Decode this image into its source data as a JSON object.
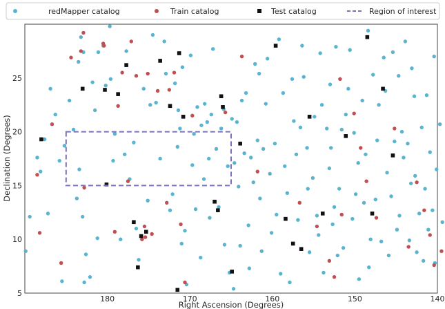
{
  "chart_data": {
    "type": "scatter",
    "xlabel": "Right Ascension (Degrees)",
    "ylabel": "Declination (Degrees)",
    "xlim": [
      190,
      140
    ],
    "ylim": [
      5,
      30
    ],
    "x_inverted": true,
    "xticks": [
      180,
      170,
      160,
      150,
      140
    ],
    "yticks": [
      5,
      10,
      15,
      20,
      25
    ],
    "grid": false,
    "legend_position": "top, horizontal",
    "colors": {
      "redmapper": "#5ab4cf",
      "train": "#c04f52",
      "test": "#111111",
      "region": "#7a72b8",
      "frame": "#444444"
    },
    "legend": [
      {
        "key": "redmapper",
        "label": "redMapper catalog",
        "marker": "circle"
      },
      {
        "key": "train",
        "label": "Train catalog",
        "marker": "circle"
      },
      {
        "key": "test",
        "label": "Test catalog",
        "marker": "square"
      },
      {
        "key": "region",
        "label": "Region of interest",
        "marker": "dashed-line"
      }
    ],
    "region": {
      "ra": [
        165,
        185
      ],
      "dec": [
        15,
        20
      ]
    },
    "series": {
      "redmapper": [
        [
          189.9,
          8.9
        ],
        [
          188.5,
          17.6
        ],
        [
          188.1,
          16.3
        ],
        [
          187.6,
          19.3
        ],
        [
          187.2,
          12.4
        ],
        [
          185.5,
          6.1
        ],
        [
          185.8,
          17.3
        ],
        [
          185.2,
          18.7
        ],
        [
          184.6,
          22.9
        ],
        [
          183.2,
          28.8
        ],
        [
          183.5,
          26.5
        ],
        [
          183.7,
          13.8
        ],
        [
          182.9,
          27.4
        ],
        [
          183.4,
          16.5
        ],
        [
          182.8,
          6.0
        ],
        [
          182.1,
          6.5
        ],
        [
          182.6,
          8.6
        ],
        [
          183.0,
          12.1
        ],
        [
          181.8,
          24.6
        ],
        [
          181.1,
          27.4
        ],
        [
          181.2,
          10.1
        ],
        [
          180.5,
          28.0
        ],
        [
          180.2,
          24.3
        ],
        [
          179.7,
          29.8
        ],
        [
          179.6,
          24.9
        ],
        [
          179.1,
          19.8
        ],
        [
          178.4,
          10.0
        ],
        [
          177.7,
          27.5
        ],
        [
          177.9,
          17.9
        ],
        [
          176.5,
          11.0
        ],
        [
          176.2,
          8.1
        ],
        [
          175.6,
          24.0
        ],
        [
          174.8,
          22.5
        ],
        [
          174.5,
          29.0
        ],
        [
          174.1,
          22.7
        ],
        [
          173.1,
          28.4
        ],
        [
          172.9,
          25.4
        ],
        [
          172.4,
          12.7
        ],
        [
          171.8,
          24.5
        ],
        [
          171.4,
          22.0
        ],
        [
          171.5,
          18.6
        ],
        [
          171.2,
          20.3
        ],
        [
          171.0,
          9.6
        ],
        [
          170.6,
          10.8
        ],
        [
          170.4,
          5.8
        ],
        [
          169.9,
          27.1
        ],
        [
          169.7,
          16.9
        ],
        [
          169.5,
          19.8
        ],
        [
          169.1,
          22.3
        ],
        [
          168.6,
          20.6
        ],
        [
          168.2,
          22.6
        ],
        [
          168.3,
          15.6
        ],
        [
          167.9,
          20.9
        ],
        [
          167.7,
          17.5
        ],
        [
          167.4,
          21.6
        ],
        [
          167.6,
          12.0
        ],
        [
          166.2,
          20.3
        ],
        [
          166.5,
          13.0
        ],
        [
          165.9,
          22.1
        ],
        [
          165.4,
          16.8
        ],
        [
          165.8,
          9.5
        ],
        [
          164.9,
          21.2
        ],
        [
          164.3,
          20.9
        ],
        [
          164.6,
          17.1
        ],
        [
          164.7,
          5.4
        ],
        [
          163.7,
          22.9
        ],
        [
          163.2,
          23.6
        ],
        [
          163.4,
          18.0
        ],
        [
          162.6,
          17.6
        ],
        [
          162.9,
          11.3
        ],
        [
          162.8,
          7.3
        ],
        [
          162.1,
          26.3
        ],
        [
          161.6,
          25.4
        ],
        [
          161.8,
          19.2
        ],
        [
          161.5,
          13.8
        ],
        [
          161.1,
          18.4
        ],
        [
          160.6,
          26.8
        ],
        [
          160.8,
          22.6
        ],
        [
          160.3,
          16.1
        ],
        [
          159.7,
          18.9
        ],
        [
          159.5,
          12.3
        ],
        [
          159.0,
          6.8
        ],
        [
          158.7,
          23.6
        ],
        [
          158.2,
          14.3
        ],
        [
          157.6,
          24.9
        ],
        [
          157.4,
          21.0
        ],
        [
          156.6,
          20.4
        ],
        [
          156.2,
          25.1
        ],
        [
          155.8,
          18.5
        ],
        [
          155.7,
          14.7
        ],
        [
          155.5,
          8.8
        ],
        [
          154.9,
          21.4
        ],
        [
          154.6,
          12.2
        ],
        [
          154.4,
          10.4
        ],
        [
          154.0,
          22.5
        ],
        [
          153.4,
          20.3
        ],
        [
          153.1,
          16.6
        ],
        [
          152.7,
          11.4
        ],
        [
          152.5,
          13.0
        ],
        [
          152.1,
          8.5
        ],
        [
          151.6,
          20.2
        ],
        [
          151.1,
          21.6
        ],
        [
          150.8,
          24.0
        ],
        [
          150.1,
          19.9
        ],
        [
          149.5,
          6.3
        ],
        [
          149.6,
          17.1
        ],
        [
          148.9,
          13.4
        ],
        [
          148.4,
          29.4
        ],
        [
          148.1,
          10.0
        ],
        [
          147.8,
          25.3
        ],
        [
          147.1,
          22.5
        ],
        [
          146.5,
          26.9
        ],
        [
          146.1,
          16.2
        ],
        [
          145.9,
          8.5
        ],
        [
          145.2,
          19.1
        ],
        [
          144.7,
          25.2
        ],
        [
          144.3,
          20.0
        ],
        [
          144.6,
          12.2
        ],
        [
          143.6,
          18.9
        ],
        [
          143.2,
          15.2
        ],
        [
          142.8,
          23.3
        ],
        [
          142.5,
          8.8
        ],
        [
          141.9,
          20.4
        ],
        [
          141.5,
          14.7
        ],
        [
          141.1,
          10.9
        ],
        [
          140.6,
          12.7
        ],
        [
          140.3,
          7.8
        ],
        [
          140.1,
          16.5
        ],
        [
          139.7,
          20.7
        ],
        [
          139.4,
          11.6
        ],
        [
          189.4,
          12.1
        ],
        [
          186.9,
          24.0
        ],
        [
          186.3,
          21.6
        ],
        [
          184.1,
          20.2
        ],
        [
          181.5,
          22.0
        ],
        [
          179.3,
          17.3
        ],
        [
          177.3,
          15.6
        ],
        [
          176.8,
          19.0
        ],
        [
          175.1,
          13.6
        ],
        [
          173.6,
          17.5
        ],
        [
          172.1,
          14.2
        ],
        [
          170.9,
          26.0
        ],
        [
          169.3,
          12.8
        ],
        [
          168.7,
          8.3
        ],
        [
          167.2,
          27.7
        ],
        [
          166.8,
          18.4
        ],
        [
          165.2,
          6.9
        ],
        [
          164.1,
          14.9
        ],
        [
          163.9,
          9.4
        ],
        [
          162.3,
          15.3
        ],
        [
          161.3,
          8.9
        ],
        [
          160.1,
          10.6
        ],
        [
          159.2,
          28.6
        ],
        [
          158.5,
          16.8
        ],
        [
          157.9,
          6.0
        ],
        [
          157.1,
          17.9
        ],
        [
          156.9,
          11.8
        ],
        [
          156.4,
          28.0
        ],
        [
          155.1,
          15.7
        ],
        [
          154.2,
          27.3
        ],
        [
          153.8,
          6.9
        ],
        [
          153.0,
          24.4
        ],
        [
          152.9,
          18.5
        ],
        [
          152.3,
          27.9
        ],
        [
          151.9,
          14.7
        ],
        [
          151.4,
          9.2
        ],
        [
          150.6,
          27.6
        ],
        [
          150.3,
          11.9
        ],
        [
          149.9,
          14.2
        ],
        [
          149.1,
          22.9
        ],
        [
          148.7,
          17.9
        ],
        [
          148.3,
          7.4
        ],
        [
          147.5,
          13.7
        ],
        [
          147.3,
          19.2
        ],
        [
          146.8,
          9.8
        ],
        [
          146.3,
          23.8
        ],
        [
          145.6,
          14.0
        ],
        [
          145.4,
          27.4
        ],
        [
          144.9,
          10.9
        ],
        [
          144.1,
          17.6
        ],
        [
          143.9,
          28.4
        ],
        [
          143.4,
          9.9
        ],
        [
          143.1,
          25.9
        ],
        [
          142.7,
          15.9
        ],
        [
          142.2,
          12.4
        ],
        [
          141.7,
          8.0
        ],
        [
          141.3,
          23.4
        ],
        [
          140.9,
          18.1
        ],
        [
          140.4,
          27.0
        ]
      ],
      "train": [
        [
          188.5,
          16.0
        ],
        [
          188.2,
          10.6
        ],
        [
          186.7,
          20.7
        ],
        [
          185.6,
          7.8
        ],
        [
          184.4,
          26.9
        ],
        [
          183.2,
          27.5
        ],
        [
          182.9,
          29.2
        ],
        [
          182.8,
          14.8
        ],
        [
          180.5,
          28.2
        ],
        [
          180.4,
          28.0
        ],
        [
          179.1,
          10.7
        ],
        [
          178.7,
          22.4
        ],
        [
          178.2,
          25.5
        ],
        [
          177.5,
          15.4
        ],
        [
          177.1,
          28.4
        ],
        [
          176.5,
          25.2
        ],
        [
          175.5,
          11.2
        ],
        [
          175.4,
          10.2
        ],
        [
          175.1,
          25.4
        ],
        [
          174.6,
          10.5
        ],
        [
          173.9,
          23.8
        ],
        [
          172.8,
          13.4
        ],
        [
          172.5,
          23.9
        ],
        [
          171.9,
          25.5
        ],
        [
          171.1,
          11.4
        ],
        [
          170.6,
          6.0
        ],
        [
          169.7,
          21.5
        ],
        [
          163.7,
          27.0
        ],
        [
          161.8,
          16.3
        ],
        [
          156.7,
          13.4
        ],
        [
          154.6,
          11.2
        ],
        [
          153.1,
          8.0
        ],
        [
          152.5,
          6.5
        ],
        [
          151.8,
          24.9
        ],
        [
          151.6,
          12.3
        ],
        [
          150.1,
          21.7
        ],
        [
          149.3,
          18.5
        ],
        [
          148.6,
          15.4
        ],
        [
          147.4,
          12.0
        ],
        [
          145.2,
          20.3
        ],
        [
          143.5,
          9.3
        ],
        [
          142.5,
          15.3
        ],
        [
          141.6,
          12.7
        ],
        [
          140.9,
          10.4
        ],
        [
          140.4,
          7.6
        ],
        [
          139.5,
          8.9
        ],
        [
          165.7,
          21.8
        ],
        [
          175.8,
          10.0
        ]
      ],
      "test": [
        [
          188.0,
          19.3
        ],
        [
          183.0,
          24.0
        ],
        [
          180.3,
          23.9
        ],
        [
          180.1,
          15.1
        ],
        [
          178.7,
          23.5
        ],
        [
          177.7,
          26.2
        ],
        [
          176.8,
          11.6
        ],
        [
          176.3,
          7.4
        ],
        [
          175.9,
          10.3
        ],
        [
          175.3,
          10.7
        ],
        [
          173.6,
          26.6
        ],
        [
          172.4,
          22.4
        ],
        [
          171.5,
          5.3
        ],
        [
          171.3,
          27.3
        ],
        [
          170.8,
          21.4
        ],
        [
          167.0,
          13.5
        ],
        [
          166.6,
          12.7
        ],
        [
          166.2,
          23.3
        ],
        [
          166.0,
          22.3
        ],
        [
          164.9,
          7.0
        ],
        [
          163.9,
          18.9
        ],
        [
          159.6,
          28.0
        ],
        [
          158.4,
          11.9
        ],
        [
          157.5,
          9.6
        ],
        [
          156.5,
          9.1
        ],
        [
          155.5,
          21.4
        ],
        [
          153.9,
          12.4
        ],
        [
          151.1,
          19.6
        ],
        [
          148.5,
          28.8
        ],
        [
          147.9,
          12.4
        ],
        [
          146.6,
          24.0
        ],
        [
          145.4,
          17.8
        ]
      ]
    }
  }
}
